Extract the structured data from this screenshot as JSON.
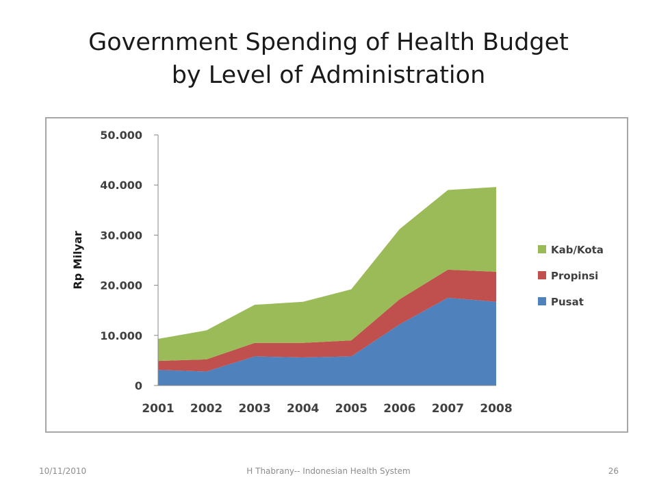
{
  "slide": {
    "title_line1": "Government Spending of Health Budget",
    "title_line2": "by Level of Administration"
  },
  "chart_data": {
    "type": "area",
    "stacked": true,
    "ylabel": "Rp Milyar",
    "xlabel": "",
    "x": [
      "2001",
      "2002",
      "2003",
      "2004",
      "2005",
      "2006",
      "2007",
      "2008"
    ],
    "ylim": [
      0,
      50000
    ],
    "yticks": [
      0,
      10000,
      20000,
      30000,
      40000,
      50000
    ],
    "ytick_labels": [
      "0",
      "10.000",
      "20.000",
      "30.000",
      "40.000",
      "50.000"
    ],
    "grid": false,
    "legend_position": "right",
    "series": [
      {
        "name": "Pusat",
        "color": "#4f81bd",
        "values": [
          3100,
          2800,
          5800,
          5600,
          5800,
          12200,
          17500,
          16700
        ]
      },
      {
        "name": "Propinsi",
        "color": "#c0504d",
        "values": [
          1800,
          2400,
          2700,
          2900,
          3200,
          5000,
          5600,
          6000
        ]
      },
      {
        "name": "Kab/Kota",
        "color": "#9bbb59",
        "values": [
          4400,
          5800,
          7600,
          8200,
          10200,
          14000,
          15900,
          16900
        ]
      }
    ]
  },
  "footer": {
    "date": "10/11/2010",
    "center": "H Thabrany-- Indonesian Health System",
    "page": "26"
  }
}
